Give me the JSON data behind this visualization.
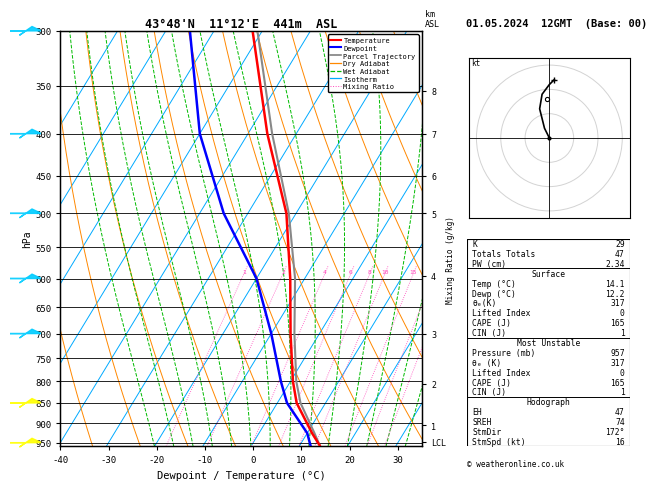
{
  "title_main": "43°48'N  11°12'E  441m  ASL",
  "title_right": "01.05.2024  12GMT  (Base: 00)",
  "xlabel": "Dewpoint / Temperature (°C)",
  "pressure_ticks": [
    300,
    350,
    400,
    450,
    500,
    550,
    600,
    650,
    700,
    750,
    800,
    850,
    900,
    950
  ],
  "temp_range_min": -40,
  "temp_range_max": 35,
  "skew_factor": 45.0,
  "isotherm_color": "#00aaff",
  "dry_adiabat_color": "#ff8800",
  "wet_adiabat_color": "#00bb00",
  "mixing_ratio_color": "#ff44bb",
  "temp_profile_color": "#ff0000",
  "dewp_profile_color": "#0000ff",
  "parcel_color": "#888888",
  "temp_data_pressure": [
    957,
    925,
    850,
    800,
    700,
    600,
    500,
    400,
    300
  ],
  "temp_data_temp": [
    14.1,
    11.0,
    4.0,
    0.5,
    -6.0,
    -13.0,
    -22.0,
    -36.0,
    -52.0
  ],
  "dewp_data_pressure": [
    957,
    925,
    850,
    800,
    700,
    600,
    500,
    400,
    300
  ],
  "dewp_data_dewp": [
    12.2,
    10.0,
    2.0,
    -2.0,
    -10.0,
    -20.0,
    -35.0,
    -50.0,
    -65.0
  ],
  "parcel_data_pressure": [
    957,
    925,
    850,
    800,
    700,
    600,
    500,
    400,
    300
  ],
  "parcel_data_temp": [
    14.1,
    11.5,
    4.8,
    1.2,
    -5.2,
    -12.0,
    -21.5,
    -35.0,
    -51.0
  ],
  "mixing_ratios": [
    1,
    2,
    4,
    6,
    8,
    10,
    15,
    20,
    25
  ],
  "km_ticks": [
    1,
    2,
    3,
    4,
    5,
    6,
    7,
    8
  ],
  "km_pressures": [
    905,
    805,
    700,
    595,
    500,
    450,
    400,
    355
  ],
  "lcl_pressure": 947,
  "stats_K": 29,
  "stats_TT": 47,
  "stats_PW": "2.34",
  "stats_surf_temp": "14.1",
  "stats_surf_dewp": "12.2",
  "stats_surf_theta": 317,
  "stats_surf_li": 0,
  "stats_surf_cape": 165,
  "stats_surf_cin": 1,
  "stats_mu_pres": 957,
  "stats_mu_theta": 317,
  "stats_mu_li": 0,
  "stats_mu_cape": 165,
  "stats_mu_cin": 1,
  "stats_eh": 47,
  "stats_sreh": 74,
  "stats_stmdir": "172°",
  "stats_stmspd": 16,
  "hodo_u": [
    0,
    -2,
    -4,
    -3,
    0,
    2
  ],
  "hodo_v": [
    0,
    4,
    12,
    18,
    22,
    24
  ],
  "barb_pressures": [
    300,
    400,
    500,
    600,
    700,
    850,
    950
  ],
  "barb_colors": [
    "#00ccff",
    "#00ccff",
    "#00ccff",
    "#00ccff",
    "#00ccff",
    "#ffff00",
    "#ffff00"
  ]
}
